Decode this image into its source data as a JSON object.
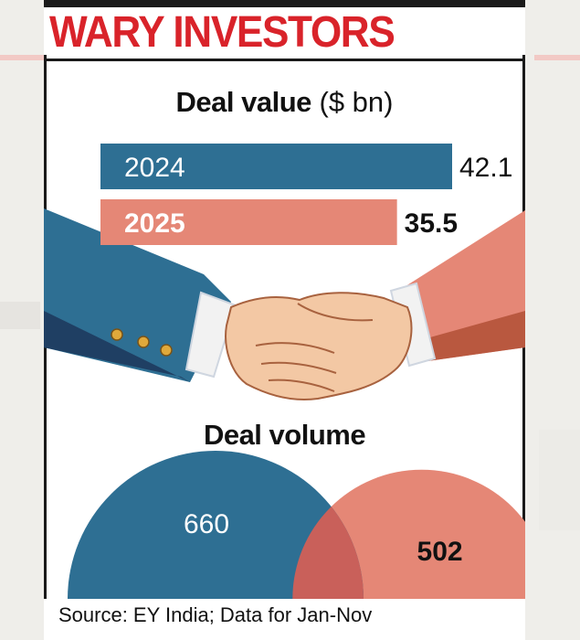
{
  "headline": "WARY INVESTORS",
  "chart_data": [
    {
      "type": "bar",
      "title": "Deal value",
      "unit": "($ bn)",
      "categories": [
        "2024",
        "2025"
      ],
      "values": [
        42.1,
        35.5
      ],
      "value_labels": [
        "42.1",
        "35.5"
      ]
    },
    {
      "type": "area",
      "title": "Deal volume",
      "categories": [
        "2024",
        "2025"
      ],
      "values": [
        660,
        502
      ],
      "value_labels": [
        "660",
        "502"
      ]
    }
  ],
  "colors": {
    "headline": "#d9232a",
    "series_2024": "#2e6f93",
    "series_2025": "#e58776",
    "overlap": "#c9605a"
  },
  "source": "Source: EY India; Data for Jan-Nov"
}
